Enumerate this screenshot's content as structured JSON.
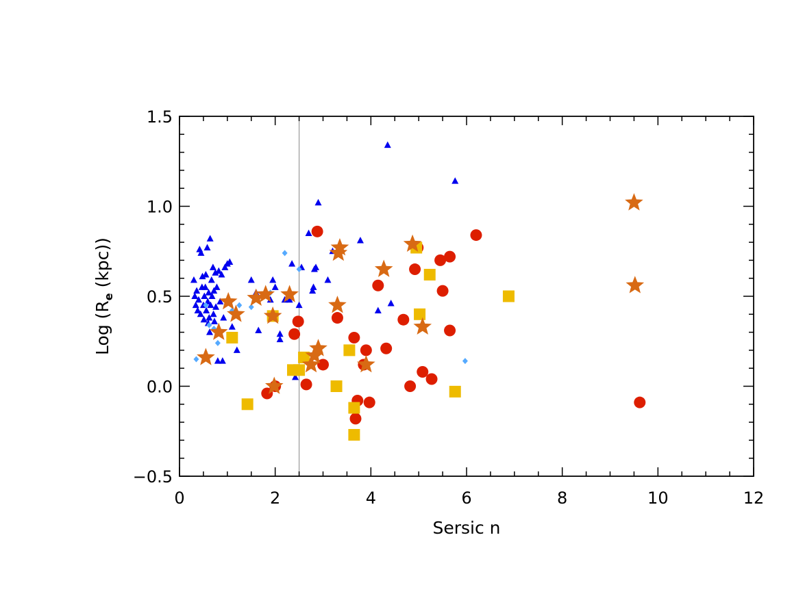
{
  "chart_data": {
    "type": "scatter",
    "xlabel": "Sersic n",
    "ylabel": {
      "prefix": "Log (R",
      "subscript": "e",
      "suffix": " (kpc))"
    },
    "xlim": [
      0,
      12
    ],
    "ylim": [
      -0.5,
      1.5
    ],
    "xticks": [
      "0",
      "2",
      "4",
      "6",
      "8",
      "10",
      "12"
    ],
    "yticks": [
      "−0.5",
      "0.0",
      "0.5",
      "1.0",
      "1.5"
    ],
    "xtick_values": [
      0,
      2,
      4,
      6,
      8,
      10,
      12
    ],
    "ytick_values": [
      -0.5,
      0.0,
      0.5,
      1.0,
      1.5
    ],
    "vline_x": 2.5,
    "grid": false,
    "series": [
      {
        "marker": "triangle",
        "color": "#0000ee",
        "points": [
          [
            0.3,
            0.59
          ],
          [
            0.32,
            0.5
          ],
          [
            0.34,
            0.45
          ],
          [
            0.36,
            0.53
          ],
          [
            0.38,
            0.42
          ],
          [
            0.4,
            0.48
          ],
          [
            0.42,
            0.76
          ],
          [
            0.44,
            0.4
          ],
          [
            0.45,
            0.74
          ],
          [
            0.47,
            0.55
          ],
          [
            0.48,
            0.61
          ],
          [
            0.5,
            0.45
          ],
          [
            0.51,
            0.37
          ],
          [
            0.52,
            0.5
          ],
          [
            0.54,
            0.55
          ],
          [
            0.55,
            0.62
          ],
          [
            0.56,
            0.42
          ],
          [
            0.58,
            0.77
          ],
          [
            0.59,
            0.47
          ],
          [
            0.6,
            0.35
          ],
          [
            0.61,
            0.52
          ],
          [
            0.62,
            0.38
          ],
          [
            0.63,
            0.3
          ],
          [
            0.64,
            0.82
          ],
          [
            0.65,
            0.45
          ],
          [
            0.67,
            0.59
          ],
          [
            0.68,
            0.5
          ],
          [
            0.7,
            0.66
          ],
          [
            0.71,
            0.4
          ],
          [
            0.72,
            0.53
          ],
          [
            0.73,
            0.36
          ],
          [
            0.75,
            0.63
          ],
          [
            0.76,
            0.44
          ],
          [
            0.78,
            0.55
          ],
          [
            0.8,
            0.14
          ],
          [
            0.82,
            0.64
          ],
          [
            0.85,
            0.47
          ],
          [
            0.88,
            0.62
          ],
          [
            0.9,
            0.14
          ],
          [
            0.92,
            0.38
          ],
          [
            0.95,
            0.66
          ],
          [
            1.0,
            0.68
          ],
          [
            1.05,
            0.69
          ],
          [
            1.1,
            0.33
          ],
          [
            1.15,
            0.27
          ],
          [
            1.2,
            0.2
          ],
          [
            1.5,
            0.59
          ],
          [
            1.6,
            0.52
          ],
          [
            1.65,
            0.31
          ],
          [
            1.9,
            0.48
          ],
          [
            1.95,
            0.59
          ],
          [
            2.0,
            0.55
          ],
          [
            2.1,
            0.26
          ],
          [
            2.1,
            0.29
          ],
          [
            2.2,
            0.48
          ],
          [
            2.3,
            0.48
          ],
          [
            2.35,
            0.68
          ],
          [
            2.5,
            0.45
          ],
          [
            2.55,
            0.66
          ],
          [
            2.7,
            0.85
          ],
          [
            2.78,
            0.53
          ],
          [
            2.8,
            0.55
          ],
          [
            2.82,
            0.65
          ],
          [
            2.85,
            0.66
          ],
          [
            2.9,
            1.02
          ],
          [
            3.1,
            0.59
          ],
          [
            3.2,
            0.75
          ],
          [
            3.78,
            0.81
          ],
          [
            4.15,
            0.42
          ],
          [
            4.35,
            1.34
          ],
          [
            4.42,
            0.46
          ],
          [
            5.76,
            1.14
          ],
          [
            2.42,
            0.05
          ]
        ]
      },
      {
        "marker": "diamond",
        "color": "#55aaff",
        "points": [
          [
            0.35,
            0.15
          ],
          [
            0.55,
            0.45
          ],
          [
            0.62,
            0.34
          ],
          [
            0.72,
            0.32
          ],
          [
            0.8,
            0.24
          ],
          [
            1.1,
            0.42
          ],
          [
            1.25,
            0.45
          ],
          [
            1.5,
            0.44
          ],
          [
            1.9,
            0.52
          ],
          [
            2.2,
            0.74
          ],
          [
            2.5,
            0.65
          ],
          [
            5.97,
            0.14
          ]
        ]
      },
      {
        "marker": "circle",
        "color": "#dd1e00",
        "points": [
          [
            1.83,
            -0.04
          ],
          [
            2.0,
            0.0
          ],
          [
            2.4,
            0.29
          ],
          [
            2.48,
            0.36
          ],
          [
            2.65,
            0.01
          ],
          [
            2.88,
            0.86
          ],
          [
            3.0,
            0.12
          ],
          [
            3.3,
            0.38
          ],
          [
            3.65,
            0.27
          ],
          [
            3.68,
            -0.18
          ],
          [
            3.72,
            -0.08
          ],
          [
            3.85,
            0.12
          ],
          [
            3.9,
            0.2
          ],
          [
            3.97,
            -0.09
          ],
          [
            4.15,
            0.56
          ],
          [
            4.32,
            0.21
          ],
          [
            4.68,
            0.37
          ],
          [
            4.82,
            0.0
          ],
          [
            4.92,
            0.65
          ],
          [
            4.98,
            0.77
          ],
          [
            5.08,
            0.08
          ],
          [
            5.27,
            0.04
          ],
          [
            5.45,
            0.7
          ],
          [
            5.5,
            0.53
          ],
          [
            5.65,
            0.72
          ],
          [
            5.65,
            0.31
          ],
          [
            6.2,
            0.84
          ],
          [
            9.62,
            -0.09
          ]
        ]
      },
      {
        "marker": "square",
        "color": "#eebb00",
        "points": [
          [
            1.1,
            0.27
          ],
          [
            1.42,
            -0.1
          ],
          [
            1.95,
            0.39
          ],
          [
            2.37,
            0.09
          ],
          [
            2.5,
            0.09
          ],
          [
            2.6,
            0.16
          ],
          [
            3.28,
            0.0
          ],
          [
            3.55,
            0.2
          ],
          [
            3.65,
            -0.12
          ],
          [
            3.65,
            -0.27
          ],
          [
            4.95,
            0.77
          ],
          [
            5.02,
            0.4
          ],
          [
            5.23,
            0.62
          ],
          [
            5.76,
            -0.03
          ],
          [
            6.88,
            0.5
          ]
        ]
      },
      {
        "marker": "star",
        "color": "#d86a14",
        "points": [
          [
            0.55,
            0.16
          ],
          [
            0.82,
            0.3
          ],
          [
            1.02,
            0.47
          ],
          [
            1.18,
            0.4
          ],
          [
            1.6,
            0.49
          ],
          [
            1.8,
            0.51
          ],
          [
            1.95,
            0.39
          ],
          [
            1.98,
            0.0
          ],
          [
            2.3,
            0.51
          ],
          [
            2.75,
            0.12
          ],
          [
            2.82,
            0.17
          ],
          [
            2.9,
            0.21
          ],
          [
            3.3,
            0.45
          ],
          [
            3.32,
            0.74
          ],
          [
            3.35,
            0.77
          ],
          [
            3.9,
            0.12
          ],
          [
            4.27,
            0.65
          ],
          [
            4.87,
            0.79
          ],
          [
            5.08,
            0.33
          ],
          [
            9.5,
            1.02
          ],
          [
            9.52,
            0.56
          ]
        ]
      }
    ]
  }
}
